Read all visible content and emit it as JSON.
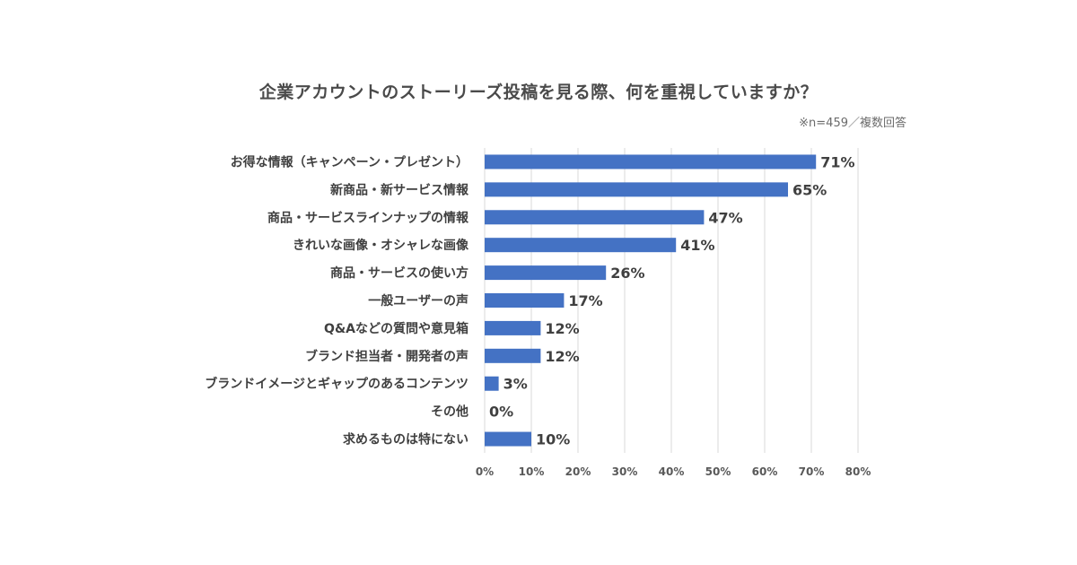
{
  "chart_data": {
    "type": "bar",
    "orientation": "horizontal",
    "title": "企業アカウントのストーリーズ投稿を見る際、何を重視していますか？",
    "note": "※n=459／複数回答",
    "categories": [
      "お得な情報（キャンペーン・プレゼント）",
      "新商品・新サービス情報",
      "商品・サービスラインナップの情報",
      "きれいな画像・オシャレな画像",
      "商品・サービスの使い方",
      "一般ユーザーの声",
      "Q&Aなどの質問や意見箱",
      "ブランド担当者・開発者の声",
      "ブランドイメージとギャップのあるコンテンツ",
      "その他",
      "求めるものは特にない"
    ],
    "values": [
      71,
      65,
      47,
      41,
      26,
      17,
      12,
      12,
      3,
      0,
      10
    ],
    "value_labels": [
      "71%",
      "65%",
      "47%",
      "41%",
      "26%",
      "17%",
      "12%",
      "12%",
      "3%",
      "0%",
      "10%"
    ],
    "xlim": [
      0,
      80
    ],
    "xticks": [
      0,
      10,
      20,
      30,
      40,
      50,
      60,
      70,
      80
    ],
    "xtick_labels": [
      "0%",
      "10%",
      "20%",
      "30%",
      "40%",
      "50%",
      "60%",
      "70%",
      "80%"
    ],
    "grid": true,
    "bar_color": "#4472C4",
    "grid_color": "#d9d9d9"
  }
}
